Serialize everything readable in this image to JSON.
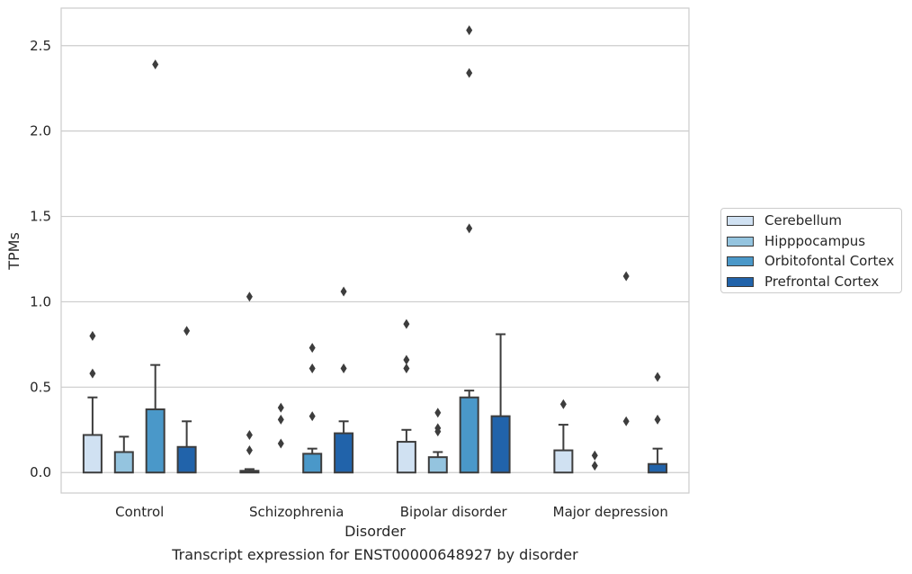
{
  "chart_data": {
    "type": "bar",
    "title": "Transcript expression for ENST00000648927 by disorder",
    "xlabel": "Disorder",
    "ylabel": "TPMs",
    "ylim": [
      -0.12,
      2.72
    ],
    "yticks": [
      "0.0",
      "0.5",
      "1.0",
      "1.5",
      "2.0",
      "2.5"
    ],
    "grid": "horizontal",
    "legend_position": "right",
    "categories": [
      "Control",
      "Schizophrenia",
      "Bipolar disorder",
      "Major depression"
    ],
    "series": [
      {
        "name": "Cerebellum",
        "color": "#d0e1f2",
        "values": [
          0.22,
          0.01,
          0.18,
          0.13
        ],
        "error_upper": [
          0.44,
          0.02,
          0.25,
          0.28
        ],
        "outliers": [
          [
            0.58,
            0.8
          ],
          [
            0.13,
            0.22,
            1.03
          ],
          [
            0.61,
            0.66,
            0.87
          ],
          [
            0.4
          ]
        ]
      },
      {
        "name": "Hipppocampus",
        "color": "#94c4df",
        "values": [
          0.12,
          0.0,
          0.09,
          0.0
        ],
        "error_upper": [
          0.21,
          0.0,
          0.12,
          0.0
        ],
        "outliers": [
          [],
          [
            0.17,
            0.31,
            0.38
          ],
          [
            0.24,
            0.26,
            0.35
          ],
          [
            0.04,
            0.1
          ]
        ]
      },
      {
        "name": "Orbitofontal Cortex",
        "color": "#4a98c9",
        "values": [
          0.37,
          0.11,
          0.44,
          0.0
        ],
        "error_upper": [
          0.63,
          0.14,
          0.48,
          0.0
        ],
        "outliers": [
          [
            2.39
          ],
          [
            0.33,
            0.61,
            0.73
          ],
          [
            1.43,
            2.34,
            2.59
          ],
          [
            0.3,
            1.15
          ]
        ]
      },
      {
        "name": "Prefrontal Cortex",
        "color": "#2163aa",
        "values": [
          0.15,
          0.23,
          0.33,
          0.05
        ],
        "error_upper": [
          0.3,
          0.3,
          0.81,
          0.14
        ],
        "outliers": [
          [
            0.83
          ],
          [
            0.61,
            1.06
          ],
          [],
          [
            0.31,
            0.56
          ]
        ]
      }
    ]
  }
}
